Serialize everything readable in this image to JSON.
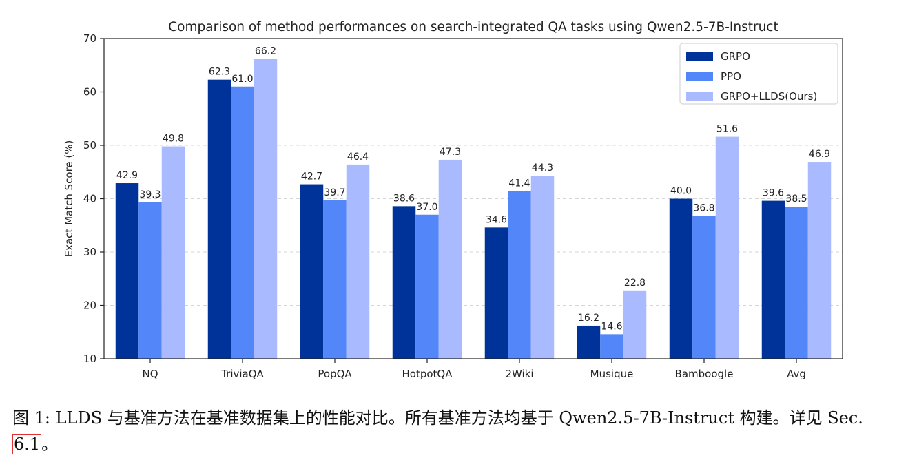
{
  "chart_data": {
    "type": "bar",
    "title": "Comparison of method performances on search-integrated QA tasks using Qwen2.5-7B-Instruct",
    "xlabel": "",
    "ylabel": "Exact Match Score (%)",
    "ylim": [
      10,
      70
    ],
    "yticks": [
      "10",
      "20",
      "30",
      "40",
      "50",
      "60",
      "70"
    ],
    "grid": "horizontal dashed",
    "legend_position": "top-right",
    "categories": [
      "NQ",
      "TriviaQA",
      "PopQA",
      "HotpotQA",
      "2Wiki",
      "Musique",
      "Bamboogle",
      "Avg"
    ],
    "series": [
      {
        "name": "GRPO",
        "color": "#00339a",
        "values": [
          42.9,
          62.3,
          42.7,
          38.6,
          34.6,
          16.2,
          40.0,
          39.6
        ]
      },
      {
        "name": "PPO",
        "color": "#5286f9",
        "values": [
          39.3,
          61.0,
          39.7,
          37.0,
          41.4,
          14.6,
          36.8,
          38.5
        ]
      },
      {
        "name": "GRPO+LLDS(Ours)",
        "color": "#a9baff",
        "values": [
          49.8,
          66.2,
          46.4,
          47.3,
          44.3,
          22.8,
          51.6,
          46.9
        ]
      }
    ]
  },
  "caption": {
    "text": "图 1: LLDS 与基准方法在基准数据集上的性能对比。所有基准方法均基于 Qwen2.5-7B-Instruct 构建。详见 Sec. ",
    "ref": "6.1",
    "tail": "。"
  }
}
